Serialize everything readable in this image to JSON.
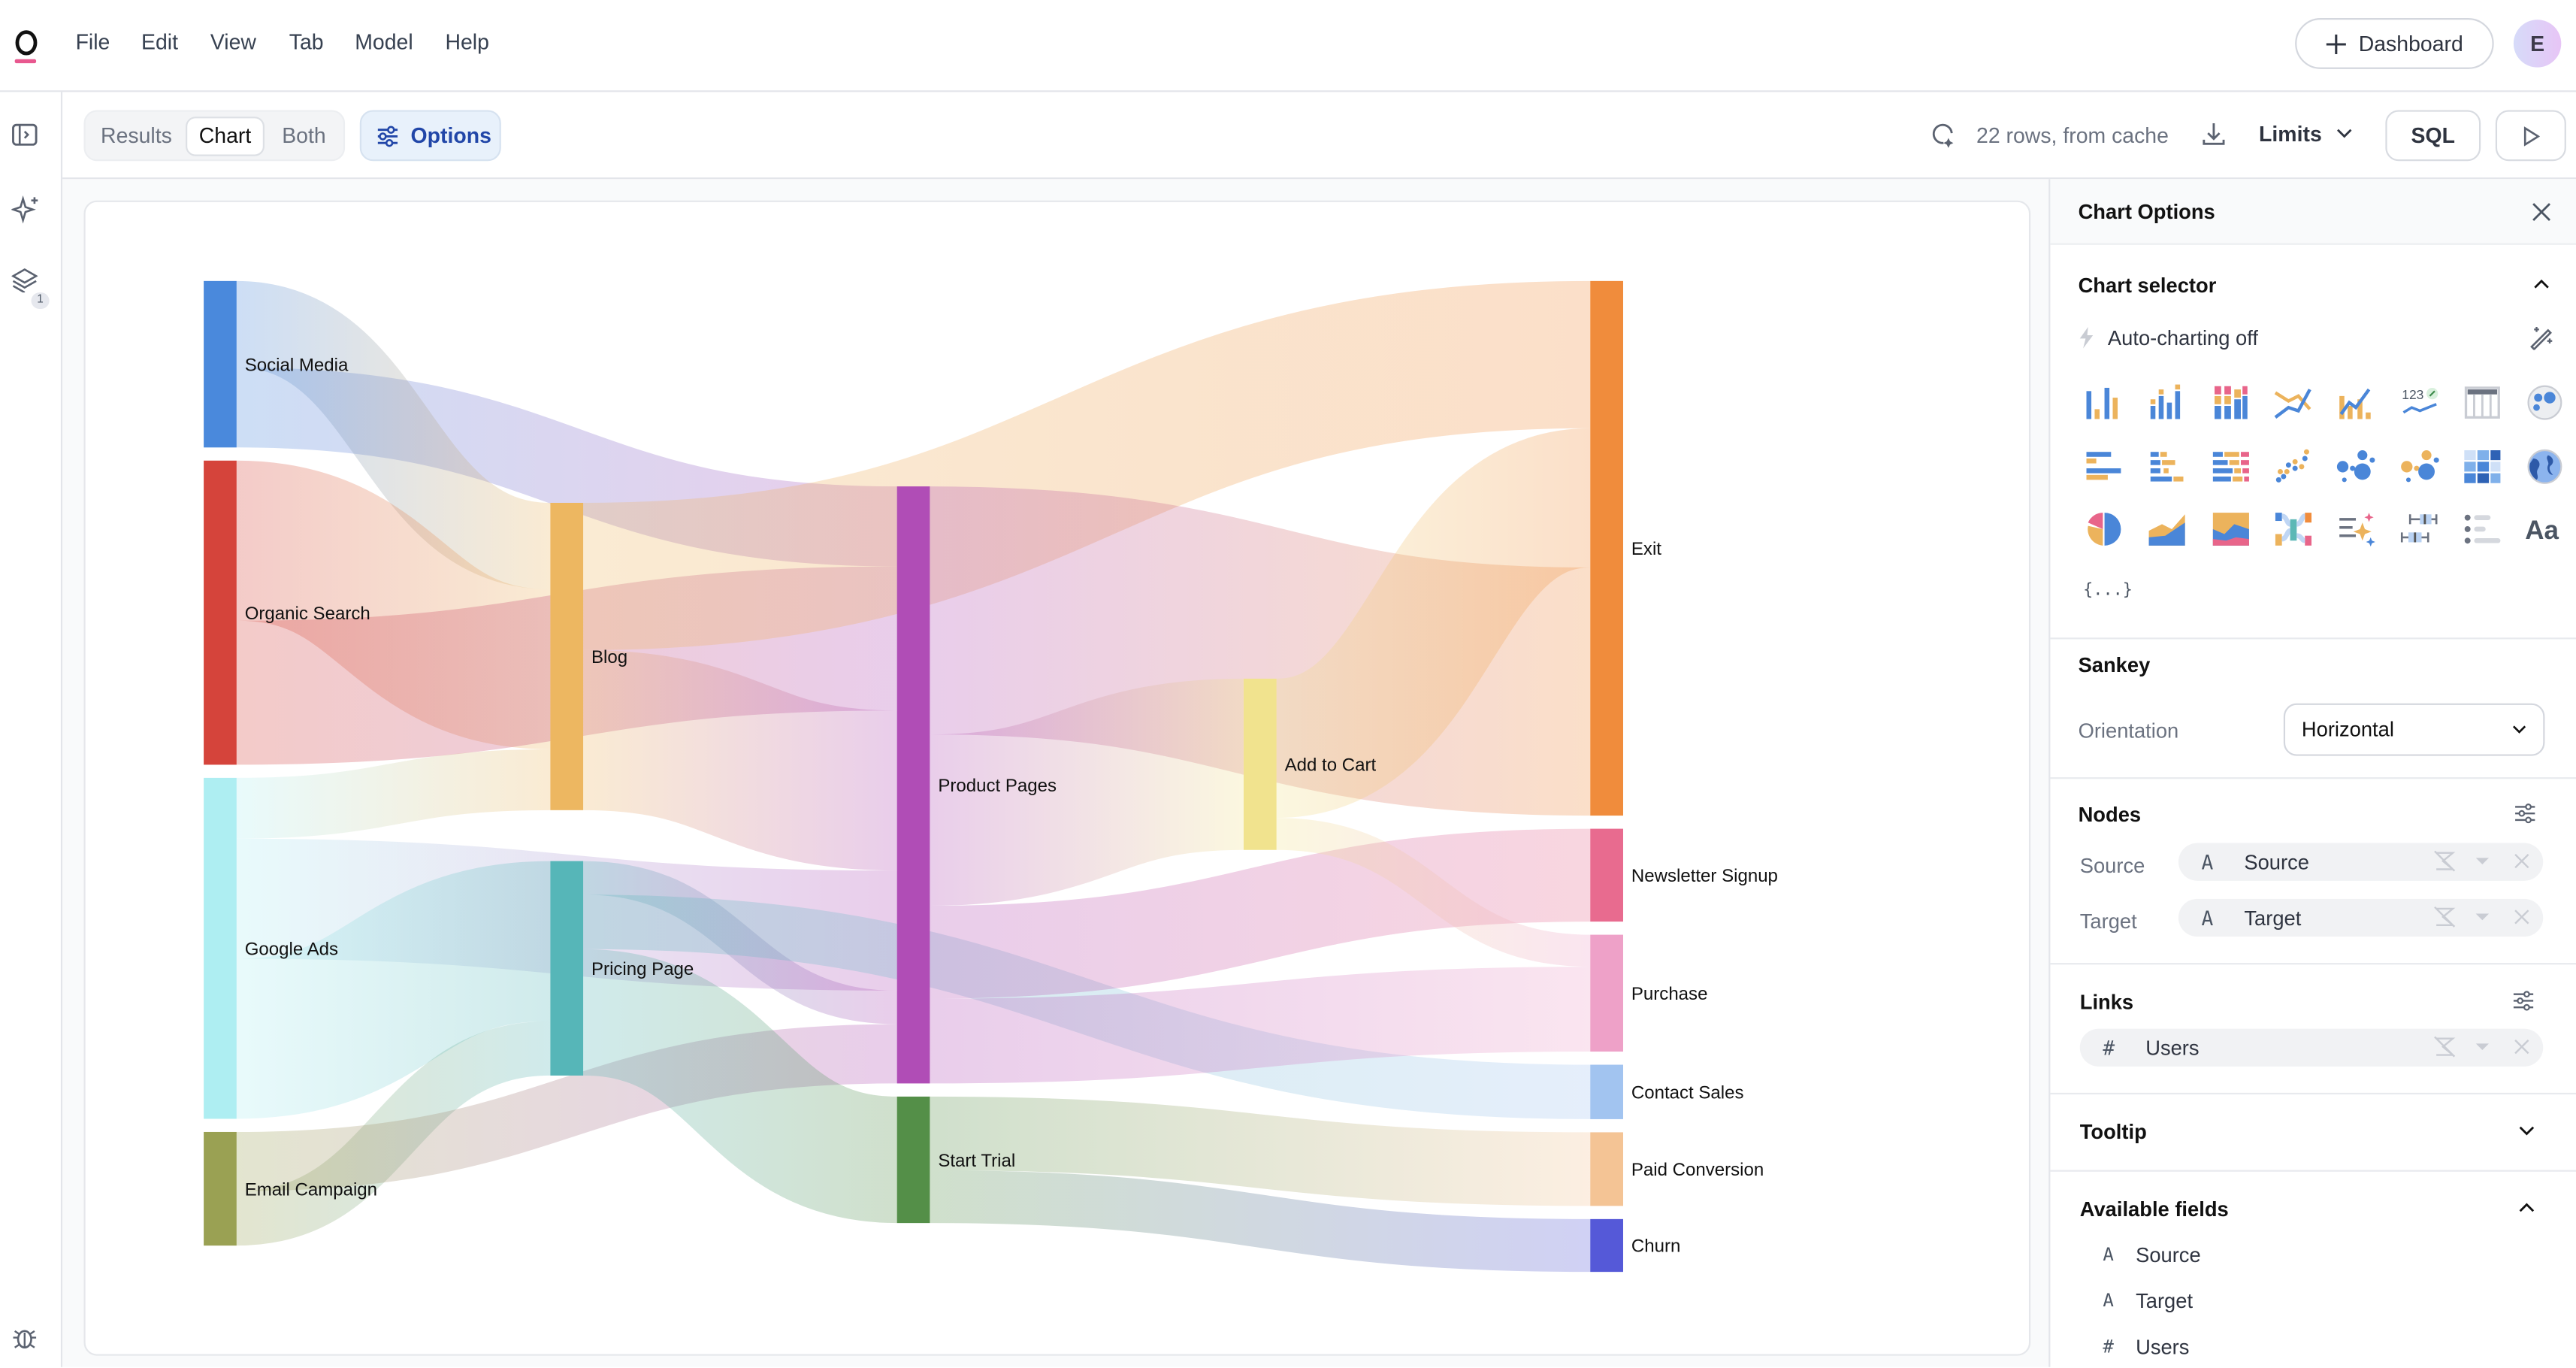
{
  "menu": [
    "File",
    "Edit",
    "View",
    "Tab",
    "Model",
    "Help"
  ],
  "header": {
    "dashboard_label": "Dashboard",
    "avatar_initial": "E"
  },
  "rail": {
    "layers_badge": "1"
  },
  "toolbar": {
    "view_tabs": [
      {
        "label": "Results",
        "selected": false
      },
      {
        "label": "Chart",
        "selected": true
      },
      {
        "label": "Both",
        "selected": false
      }
    ],
    "options_label": "Options",
    "status": "22 rows, from cache",
    "limits_label": "Limits",
    "sql_label": "SQL"
  },
  "panel": {
    "title": "Chart Options",
    "chart_selector": {
      "title": "Chart selector",
      "auto_charting": "Auto-charting off",
      "icons": [
        "bar-chart",
        "grouped-bar-chart",
        "stacked-bar-chart",
        "line-chart",
        "combo-chart",
        "kpi-chart",
        "table",
        "bubble-map",
        "horizontal-bar-chart",
        "grouped-horizontal-bar-chart",
        "stacked-horizontal-bar-chart",
        "scatter-chart",
        "bubble-chart",
        "multi-bubble-chart",
        "heatmap",
        "choropleth-map",
        "pie-chart",
        "area-chart",
        "stacked-area-chart",
        "sankey-chart",
        "ai-summary",
        "box-plot",
        "list",
        "text"
      ],
      "custom_label": "{...}"
    },
    "sankey": {
      "title": "Sankey",
      "orientation_label": "Orientation",
      "orientation_value": "Horizontal"
    },
    "nodes": {
      "title": "Nodes",
      "source_label": "Source",
      "target_label": "Target",
      "source_field": {
        "type": "A",
        "name": "Source"
      },
      "target_field": {
        "type": "A",
        "name": "Target"
      }
    },
    "links": {
      "title": "Links",
      "field": {
        "type": "#",
        "name": "Users"
      }
    },
    "tooltip": {
      "title": "Tooltip"
    },
    "available_fields": {
      "title": "Available fields",
      "fields": [
        {
          "type": "A",
          "name": "Source"
        },
        {
          "type": "A",
          "name": "Target"
        },
        {
          "type": "#",
          "name": "Users"
        }
      ]
    }
  },
  "chart_data": {
    "type": "sankey",
    "orientation": "horizontal",
    "value_field": "Users",
    "nodes": [
      {
        "name": "Social Media",
        "color": "#4a89dc",
        "column": 0
      },
      {
        "name": "Organic Search",
        "color": "#d5443b",
        "column": 0
      },
      {
        "name": "Google Ads",
        "color": "#aeeef2",
        "column": 0
      },
      {
        "name": "Email Campaign",
        "color": "#9aa153",
        "column": 0
      },
      {
        "name": "Blog",
        "color": "#edb761",
        "column": 1
      },
      {
        "name": "Pricing Page",
        "color": "#56b6b8",
        "column": 1
      },
      {
        "name": "Product Pages",
        "color": "#b04db6",
        "column": 2
      },
      {
        "name": "Start Trial",
        "color": "#548f48",
        "column": 2
      },
      {
        "name": "Add to Cart",
        "color": "#f1e38e",
        "column": 3
      },
      {
        "name": "Exit",
        "color": "#f08c3c",
        "column": 4
      },
      {
        "name": "Newsletter Signup",
        "color": "#e86b8f",
        "column": 4
      },
      {
        "name": "Purchase",
        "color": "#eea1c8",
        "column": 4
      },
      {
        "name": "Contact Sales",
        "color": "#a2c4f0",
        "column": 4
      },
      {
        "name": "Paid Conversion",
        "color": "#f4c495",
        "column": 4
      },
      {
        "name": "Churn",
        "color": "#5559d8",
        "column": 4
      }
    ],
    "links": [
      {
        "source": "Social Media",
        "target": "Product Pages",
        "value": 500
      },
      {
        "source": "Social Media",
        "target": "Blog",
        "value": 540
      },
      {
        "source": "Organic Search",
        "target": "Blog",
        "value": 1000
      },
      {
        "source": "Organic Search",
        "target": "Product Pages",
        "value": 900
      },
      {
        "source": "Google Ads",
        "target": "Product Pages",
        "value": 750
      },
      {
        "source": "Google Ads",
        "target": "Blog",
        "value": 380
      },
      {
        "source": "Google Ads",
        "target": "Pricing Page",
        "value": 1000
      },
      {
        "source": "Email Campaign",
        "target": "Pricing Page",
        "value": 340
      },
      {
        "source": "Email Campaign",
        "target": "Product Pages",
        "value": 370
      },
      {
        "source": "Blog",
        "target": "Product Pages",
        "value": 1000
      },
      {
        "source": "Blog",
        "target": "Exit",
        "value": 920
      },
      {
        "source": "Pricing Page",
        "target": "Product Pages",
        "value": 210
      },
      {
        "source": "Pricing Page",
        "target": "Start Trial",
        "value": 790
      },
      {
        "source": "Pricing Page",
        "target": "Contact Sales",
        "value": 340
      },
      {
        "source": "Product Pages",
        "target": "Exit",
        "value": 1550
      },
      {
        "source": "Product Pages",
        "target": "Add to Cart",
        "value": 1070
      },
      {
        "source": "Product Pages",
        "target": "Purchase",
        "value": 530
      },
      {
        "source": "Product Pages",
        "target": "Newsletter Signup",
        "value": 580
      },
      {
        "source": "Start Trial",
        "target": "Paid Conversion",
        "value": 460
      },
      {
        "source": "Start Trial",
        "target": "Churn",
        "value": 330
      },
      {
        "source": "Add to Cart",
        "target": "Exit",
        "value": 870
      },
      {
        "source": "Add to Cart",
        "target": "Purchase",
        "value": 200
      }
    ]
  }
}
